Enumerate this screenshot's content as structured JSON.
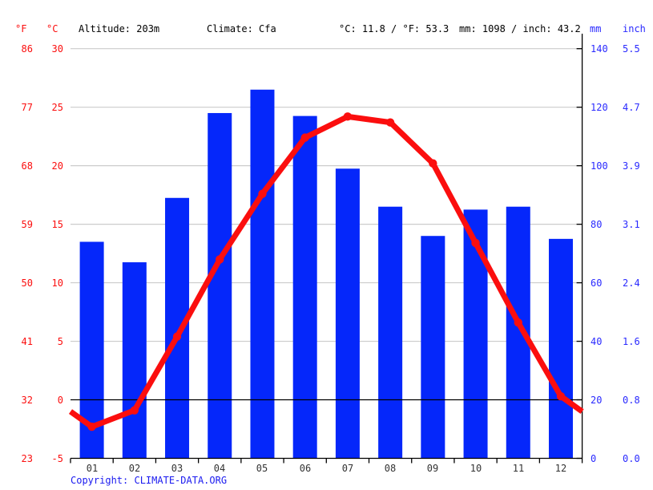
{
  "header": {
    "f_label": "°F",
    "c_label": "°C",
    "altitude": "Altitude: 203m",
    "climate": "Climate: Cfa",
    "temp_summary": "°C: 11.8 / °F: 53.3",
    "precip_summary": "mm: 1098 / inch: 43.2",
    "mm_label": "mm",
    "inch_label": "inch"
  },
  "axes": {
    "fahrenheit_ticks": [
      "86",
      "77",
      "68",
      "59",
      "50",
      "41",
      "32",
      "23"
    ],
    "celsius_ticks": [
      "30",
      "25",
      "20",
      "15",
      "10",
      "5",
      "0",
      "-5"
    ],
    "mm_ticks": [
      "140",
      "120",
      "100",
      "80",
      "60",
      "40",
      "20",
      "0"
    ],
    "inch_ticks": [
      "5.5",
      "4.7",
      "3.9",
      "3.1",
      "2.4",
      "1.6",
      "0.8",
      "0.0"
    ]
  },
  "chart_data": {
    "type": "bar+line climate chart",
    "categories": [
      "01",
      "02",
      "03",
      "04",
      "05",
      "06",
      "07",
      "08",
      "09",
      "10",
      "11",
      "12"
    ],
    "series": [
      {
        "name": "precipitation",
        "type": "bar",
        "unit": "mm",
        "values": [
          74,
          67,
          89,
          118,
          126,
          117,
          99,
          86,
          76,
          85,
          86,
          75
        ]
      },
      {
        "name": "temperature",
        "type": "line",
        "unit": "°C",
        "values": [
          -2.3,
          -0.9,
          5.4,
          12.0,
          17.6,
          22.4,
          24.2,
          23.7,
          20.2,
          13.4,
          6.6,
          0.3
        ]
      }
    ],
    "temperature_axis_c": {
      "min": -5,
      "max": 30,
      "step": 5
    },
    "precipitation_axis_mm": {
      "min": 0,
      "max": 140,
      "step": 20
    },
    "grid": "horizontal gridlines at 5°C / 20mm steps, zero line black",
    "annual_mean_temp_c": 11.8,
    "annual_precip_mm": 1098
  },
  "footer": {
    "copyright_prefix": "Copyright: ",
    "copyright_link": "CLIMATE-DATA.ORG"
  },
  "colors": {
    "bar": "#0527fa",
    "line": "#fb0e0e",
    "grid": "#cccccc",
    "zero_line": "#000000",
    "axis": "#000000",
    "temp_text": "#fb0e0e",
    "precip_text": "#2a2aff",
    "month_text": "#333333",
    "copyright_text": "#1a1af0"
  }
}
